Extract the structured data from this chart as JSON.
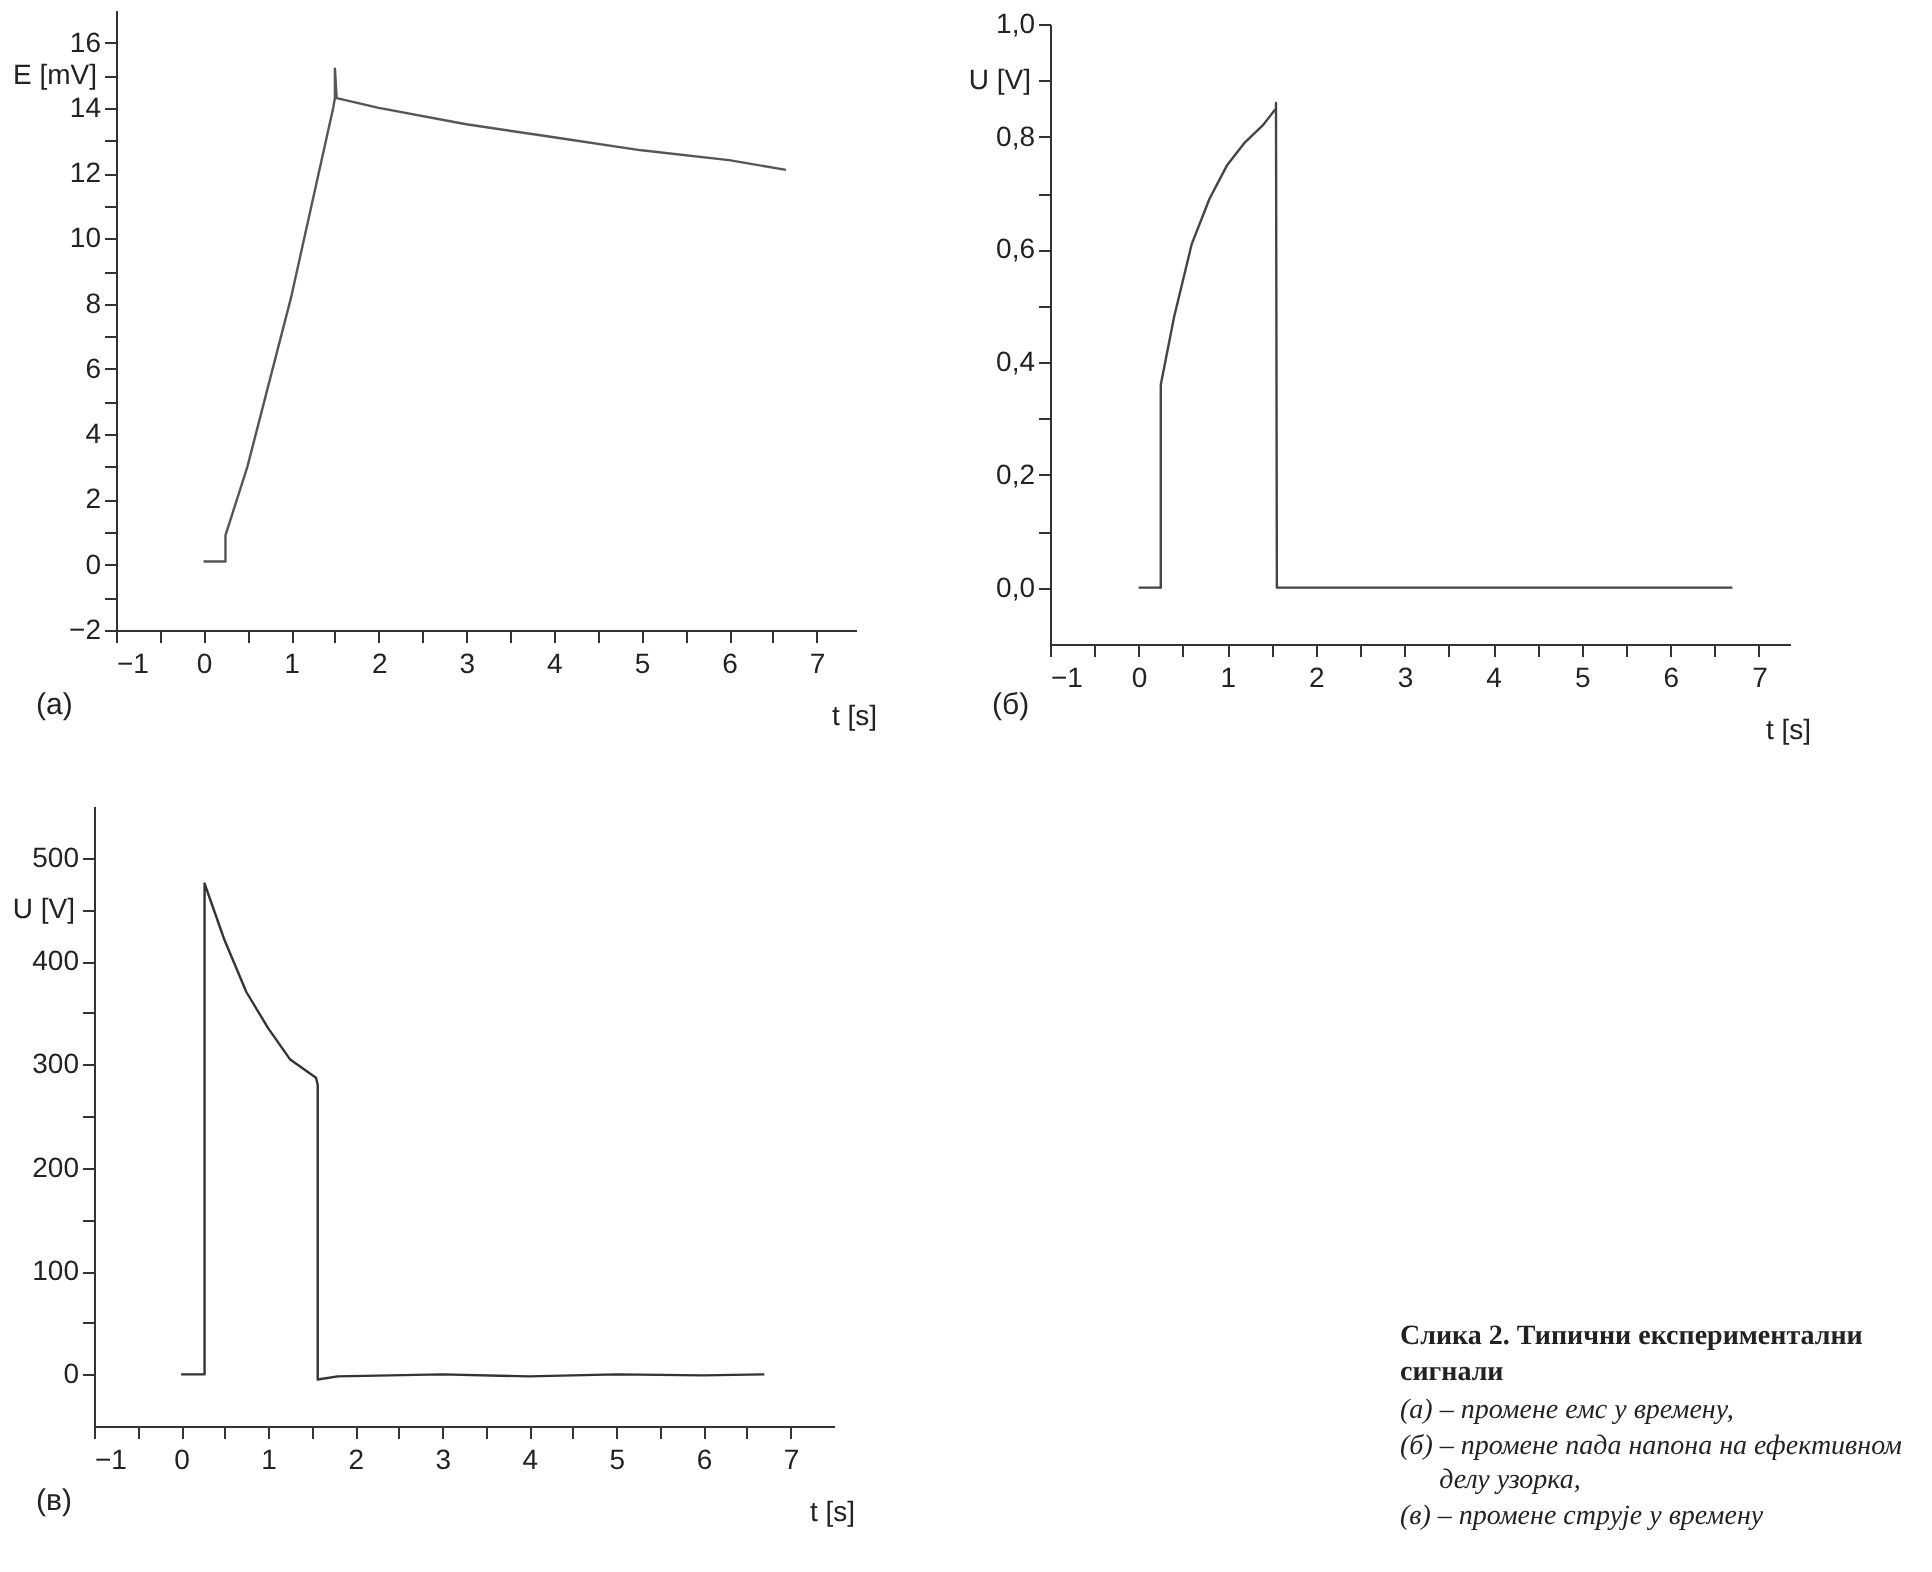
{
  "chart_data": [
    {
      "type": "line",
      "xlabel": "t [s]",
      "ylabel": "E [mV]",
      "annotations": [
        "(а)"
      ],
      "xlim": [
        -1,
        7.45
      ],
      "ylim": [
        -2,
        17
      ],
      "xticks": [
        {
          "value": -1,
          "label": "−1"
        },
        {
          "value": -0.5,
          "label": null
        },
        0,
        {
          "value": 0.5,
          "label": null
        },
        1,
        {
          "value": 1.5,
          "label": null
        },
        2,
        {
          "value": 2.5,
          "label": null
        },
        3,
        {
          "value": 3.5,
          "label": null
        },
        4,
        {
          "value": 4.5,
          "label": null
        },
        5,
        {
          "value": 5.5,
          "label": null
        },
        6,
        {
          "value": 6.5,
          "label": null
        },
        7
      ],
      "yticks": [
        {
          "value": -2,
          "label": "−2"
        },
        {
          "value": -1,
          "label": null
        },
        0,
        {
          "value": 1,
          "label": null
        },
        2,
        {
          "value": 3,
          "label": null
        },
        4,
        {
          "value": 5,
          "label": null
        },
        6,
        {
          "value": 7,
          "label": null
        },
        8,
        {
          "value": 9,
          "label": null
        },
        10,
        {
          "value": 11,
          "label": null
        },
        12,
        {
          "value": 13,
          "label": null
        },
        14,
        {
          "value": 15,
          "label": null
        },
        16
      ],
      "series": [
        {
          "color": "#555555",
          "x": [
            0,
            0.25,
            0.25,
            0.5,
            1,
            1.48,
            1.5,
            1.5,
            1.52,
            2,
            3,
            4,
            5,
            6,
            6.65
          ],
          "values": [
            0.1,
            0.1,
            0.9,
            3,
            8.2,
            14,
            14.3,
            15.2,
            14.3,
            14,
            13.5,
            13.1,
            12.7,
            12.4,
            12.1
          ]
        }
      ]
    },
    {
      "type": "line",
      "xlabel": "t [s]",
      "ylabel": "U [V]",
      "annotations": [
        "(б)"
      ],
      "xlim": [
        -1,
        7.35
      ],
      "ylim": [
        -0.1,
        1.0
      ],
      "xticks": [
        {
          "value": -1,
          "label": "−1"
        },
        {
          "value": -0.5,
          "label": null
        },
        0,
        {
          "value": 0.5,
          "label": null
        },
        1,
        {
          "value": 1.5,
          "label": null
        },
        2,
        {
          "value": 2.5,
          "label": null
        },
        3,
        {
          "value": 3.5,
          "label": null
        },
        4,
        {
          "value": 4.5,
          "label": null
        },
        5,
        {
          "value": 5.5,
          "label": null
        },
        6,
        {
          "value": 6.5,
          "label": null
        },
        7
      ],
      "yticks": [
        {
          "value": 0,
          "label": "0,0"
        },
        {
          "value": 0.1,
          "label": null
        },
        {
          "value": 0.2,
          "label": "0,2"
        },
        {
          "value": 0.3,
          "label": null
        },
        {
          "value": 0.4,
          "label": "0,4"
        },
        {
          "value": 0.5,
          "label": null
        },
        {
          "value": 0.6,
          "label": "0,6"
        },
        {
          "value": 0.7,
          "label": null
        },
        {
          "value": 0.8,
          "label": "0,8"
        },
        {
          "value": 0.9,
          "label": null
        },
        {
          "value": 1.0,
          "label": "1,0"
        }
      ],
      "series": [
        {
          "color": "#444444",
          "x": [
            0,
            0.25,
            0.25,
            0.4,
            0.6,
            0.8,
            1,
            1.2,
            1.4,
            1.55,
            1.55,
            1.56,
            1.8,
            6.7
          ],
          "values": [
            0,
            0,
            0.36,
            0.48,
            0.61,
            0.69,
            0.75,
            0.79,
            0.82,
            0.85,
            0.86,
            0,
            0,
            0
          ]
        }
      ]
    },
    {
      "type": "line",
      "xlabel": "t [s]",
      "ylabel": "U [V]",
      "annotations": [
        "(в)"
      ],
      "xlim": [
        -1,
        7.5
      ],
      "ylim": [
        -50,
        550
      ],
      "xticks": [
        {
          "value": -1,
          "label": "−1"
        },
        {
          "value": -0.5,
          "label": null
        },
        0,
        {
          "value": 0.5,
          "label": null
        },
        1,
        {
          "value": 1.5,
          "label": null
        },
        2,
        {
          "value": 2.5,
          "label": null
        },
        3,
        {
          "value": 3.5,
          "label": null
        },
        4,
        {
          "value": 4.5,
          "label": null
        },
        5,
        {
          "value": 5.5,
          "label": null
        },
        6,
        {
          "value": 6.5,
          "label": null
        },
        7
      ],
      "yticks": [
        0,
        {
          "value": 50,
          "label": null
        },
        100,
        {
          "value": 150,
          "label": null
        },
        200,
        {
          "value": 250,
          "label": null
        },
        300,
        {
          "value": 350,
          "label": null
        },
        400,
        {
          "value": 450,
          "label": null
        },
        500
      ],
      "series": [
        {
          "color": "#333333",
          "x": [
            0,
            0.27,
            0.27,
            0.5,
            0.75,
            1,
            1.25,
            1.55,
            1.57,
            1.57,
            1.8,
            3,
            4,
            5,
            6,
            6.7
          ],
          "values": [
            0,
            0,
            475,
            420,
            370,
            335,
            305,
            287,
            280,
            -5,
            -2,
            0,
            -2,
            0,
            -1,
            0
          ]
        }
      ]
    },
    {
      "type": "other",
      "title": "Слика 2. Типични експериментални сигнали",
      "annotations": [
        "(а) – промене емс у времену,",
        "(б) – промене пада напона на ефективном делу узорка,",
        "(в) – промене струје у времену"
      ]
    }
  ]
}
